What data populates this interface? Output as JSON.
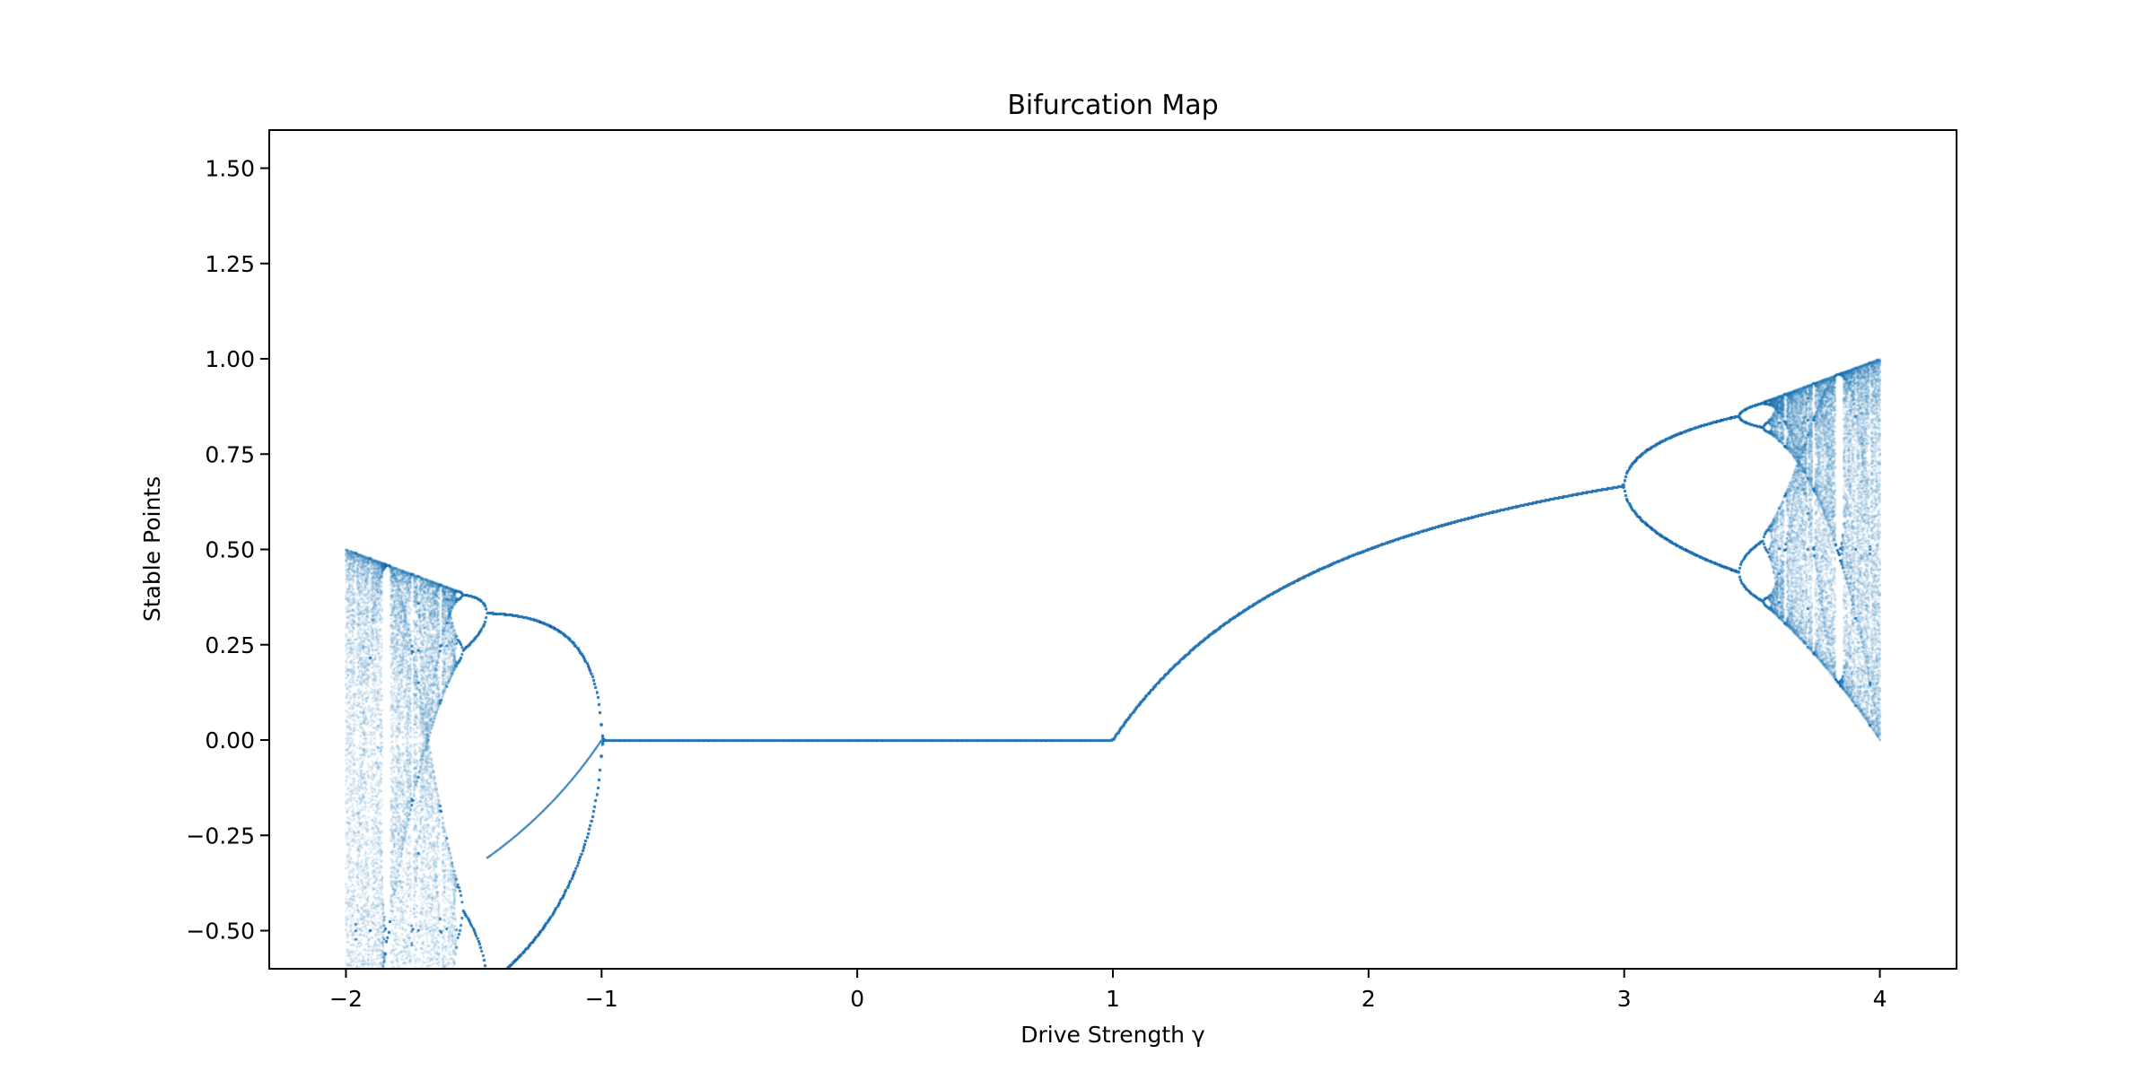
{
  "chart_data": {
    "type": "scatter",
    "title": "Bifurcation Map",
    "xlabel": "Drive Strength γ",
    "ylabel": "Stable Points",
    "xlim": [
      -2.3,
      4.3
    ],
    "ylim": [
      -0.6,
      1.6
    ],
    "xticks": [
      -2,
      -1,
      0,
      1,
      2,
      3,
      4
    ],
    "xtick_labels": [
      "−2",
      "−1",
      "0",
      "1",
      "2",
      "3",
      "4"
    ],
    "yticks": [
      -0.5,
      -0.25,
      0.0,
      0.25,
      0.5,
      0.75,
      1.0,
      1.25,
      1.5
    ],
    "ytick_labels": [
      "−0.50",
      "−0.25",
      "0.00",
      "0.25",
      "0.50",
      "0.75",
      "1.00",
      "1.25",
      "1.50"
    ],
    "grid": false,
    "legend": "none",
    "series": [
      {
        "color": "#1f77b4",
        "description": "Piecewise logistic-type map f(x) = γ·x·(1−x) for γ > 1 and f(x) = γ·x·(1+x) for γ < −1, fixed point 0 between; long-run iterates plotted vs γ",
        "x_range": [
          -2,
          4
        ],
        "stable_branches": [
          {
            "gamma_range": [
              -1,
              1
            ],
            "value": 0.0
          },
          {
            "gamma_range": [
              1,
              3
            ],
            "formula": "1 − 1/γ",
            "values_at": {
              "1": 0.0,
              "2": 0.5,
              "3": 0.667
            }
          },
          {
            "gamma_range": [
              -3,
              -1
            ],
            "formula": "−1 − 1/γ",
            "values_at": {
              "-1": 0.0,
              "-1.5": -0.333
            }
          },
          {
            "gamma_range": [
              3,
              3.449
            ],
            "period": 2,
            "values_at_3.449": [
              0.44,
              0.85
            ]
          },
          {
            "gamma_range": [
              -1.449,
              -1
            ],
            "period": 2,
            "values_at_-1.449": [
              -0.33,
              0.64
            ]
          }
        ],
        "chaotic_envelopes": [
          {
            "gamma_range": [
              3.57,
              4.0
            ],
            "min_at_4": 0.0,
            "max_at_4": 1.0
          },
          {
            "gamma_range": [
              -2.0,
              -1.57
            ],
            "min_at_-2": -0.5,
            "max_at_-2": 1.5
          }
        ]
      }
    ]
  }
}
